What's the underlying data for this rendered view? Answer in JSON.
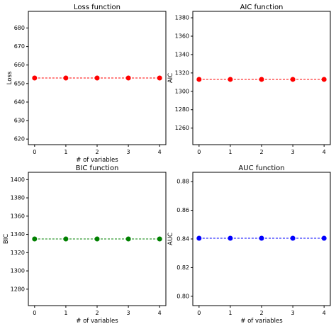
{
  "chart_data": [
    {
      "type": "line",
      "title": "Loss function",
      "xlabel": "# of variables",
      "ylabel": "Loss",
      "x": [
        0,
        1,
        2,
        3,
        4
      ],
      "series": [
        {
          "values": [
            653,
            653,
            653,
            653,
            653
          ],
          "color": "#ff0000"
        }
      ],
      "xticks": [
        0,
        1,
        2,
        3,
        4
      ],
      "yticks": [
        620,
        630,
        640,
        650,
        660,
        670,
        680
      ],
      "xlim": [
        -0.2,
        4.2
      ],
      "ylim": [
        617,
        689
      ],
      "marker": "circle",
      "linestyle": "dashed",
      "grid": false
    },
    {
      "type": "line",
      "title": "AIC function",
      "xlabel": "",
      "ylabel": "AIC",
      "x": [
        0,
        1,
        2,
        3,
        4
      ],
      "series": [
        {
          "values": [
            1313,
            1313,
            1313,
            1313,
            1313
          ],
          "color": "#ff0000"
        }
      ],
      "xticks": [
        0,
        1,
        2,
        3,
        4
      ],
      "yticks": [
        1260,
        1280,
        1300,
        1320,
        1340,
        1360,
        1380
      ],
      "xlim": [
        -0.2,
        4.2
      ],
      "ylim": [
        1242,
        1387
      ],
      "marker": "circle",
      "linestyle": "dashed",
      "grid": false
    },
    {
      "type": "line",
      "title": "BIC function",
      "xlabel": "# of variables",
      "ylabel": "BIC",
      "x": [
        0,
        1,
        2,
        3,
        4
      ],
      "series": [
        {
          "values": [
            1335,
            1335,
            1335,
            1335,
            1335
          ],
          "color": "#008000"
        }
      ],
      "xticks": [
        0,
        1,
        2,
        3,
        4
      ],
      "yticks": [
        1280,
        1300,
        1320,
        1340,
        1360,
        1380,
        1400
      ],
      "xlim": [
        -0.2,
        4.2
      ],
      "ylim": [
        1262,
        1408
      ],
      "marker": "circle",
      "linestyle": "dashed",
      "grid": false
    },
    {
      "type": "line",
      "title": "AUC function",
      "xlabel": "# of variables",
      "ylabel": "AUC",
      "x": [
        0,
        1,
        2,
        3,
        4
      ],
      "series": [
        {
          "values": [
            0.8405,
            0.8405,
            0.8405,
            0.8405,
            0.8405
          ],
          "color": "#0000ff"
        }
      ],
      "xticks": [
        0,
        1,
        2,
        3,
        4
      ],
      "yticks": [
        0.8,
        0.82,
        0.84,
        0.86,
        0.88
      ],
      "xlim": [
        -0.2,
        4.2
      ],
      "ylim": [
        0.7935,
        0.8865
      ],
      "marker": "circle",
      "linestyle": "dashed",
      "grid": false
    }
  ]
}
